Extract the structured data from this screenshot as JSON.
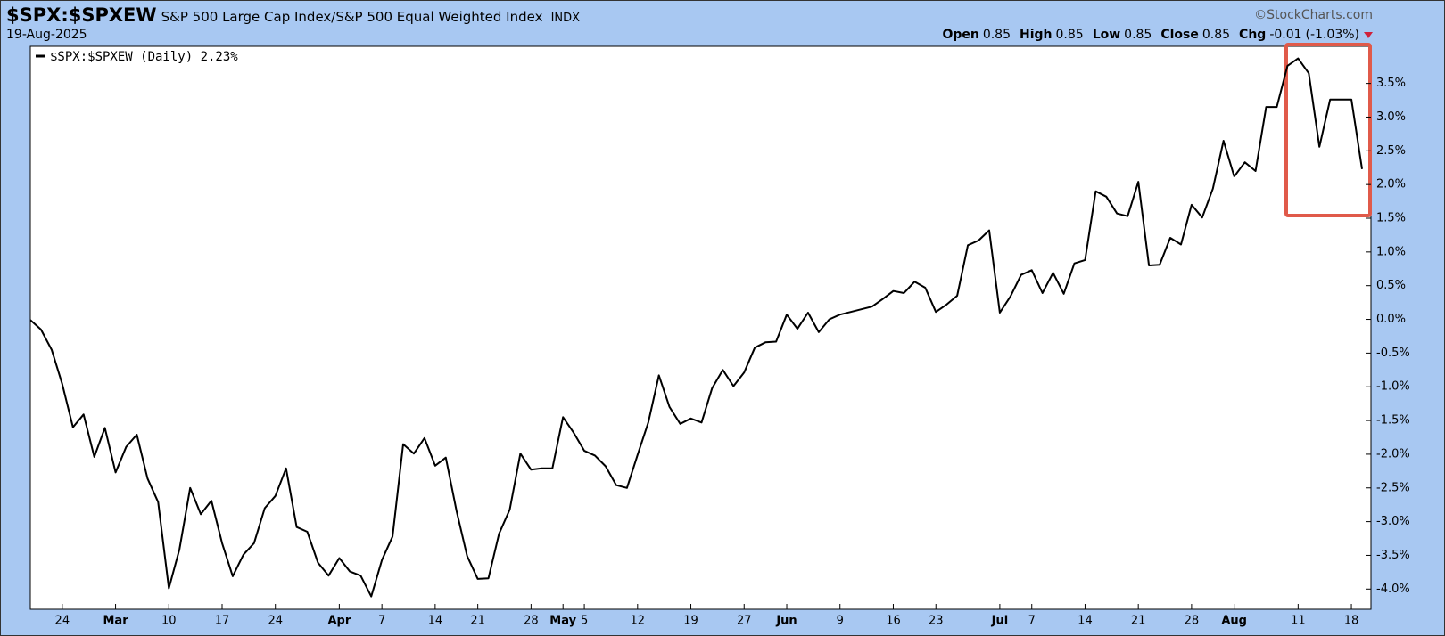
{
  "chart_data": {
    "type": "line",
    "symbol": "$SPX:$SPXEW",
    "title": "S&P 500 Large Cap Index/S&P 500 Equal Weighted Index",
    "exchange": "INDX",
    "source": "©StockCharts.com",
    "date": "19-Aug-2025",
    "quote": [
      {
        "label": "Open",
        "value": 0.85
      },
      {
        "label": "High",
        "value": 0.85
      },
      {
        "label": "Low",
        "value": 0.85
      },
      {
        "label": "Close",
        "value": 0.85
      },
      {
        "label": "Chg",
        "value": -0.01
      }
    ],
    "change_pct": "(-1.03%)",
    "categories": [
      null,
      null,
      null,
      "24",
      null,
      null,
      null,
      null,
      "Mar",
      null,
      null,
      null,
      null,
      "10",
      null,
      null,
      null,
      null,
      "17",
      null,
      null,
      null,
      null,
      "24",
      null,
      null,
      null,
      null,
      null,
      "Apr",
      null,
      null,
      null,
      "7",
      null,
      null,
      null,
      null,
      "14",
      null,
      null,
      null,
      "21",
      null,
      null,
      null,
      null,
      "28",
      null,
      null,
      "May",
      null,
      "5",
      null,
      null,
      null,
      null,
      "12",
      null,
      null,
      null,
      null,
      "19",
      null,
      null,
      null,
      null,
      "27",
      null,
      null,
      null,
      "Jun",
      null,
      null,
      null,
      null,
      "9",
      null,
      null,
      null,
      null,
      "16",
      null,
      null,
      null,
      "23",
      null,
      null,
      null,
      null,
      null,
      "Jul",
      null,
      null,
      "7",
      null,
      null,
      null,
      null,
      "14",
      null,
      null,
      null,
      null,
      "21",
      null,
      null,
      null,
      null,
      "28",
      null,
      null,
      null,
      "Aug",
      null,
      null,
      null,
      null,
      null,
      "11",
      null,
      null,
      null,
      null,
      "18",
      null
    ],
    "series": [
      {
        "name": "$SPX:$SPXEW (Daily) 2.23%",
        "color": "#000000",
        "values": [
          -0.01,
          -0.15,
          -0.45,
          -0.96,
          -1.6,
          -1.41,
          -2.04,
          -1.61,
          -2.27,
          -1.89,
          -1.71,
          -2.36,
          -2.71,
          -3.99,
          -3.41,
          -2.5,
          -2.89,
          -2.69,
          -3.32,
          -3.81,
          -3.49,
          -3.32,
          -2.8,
          -2.62,
          -2.21,
          -3.08,
          -3.15,
          -3.61,
          -3.8,
          -3.54,
          -3.74,
          -3.8,
          -4.11,
          -3.57,
          -3.22,
          -1.85,
          -1.99,
          -1.76,
          -2.17,
          -2.05,
          -2.84,
          -3.51,
          -3.85,
          -3.84,
          -3.18,
          -2.82,
          -1.99,
          -2.23,
          -2.21,
          -2.21,
          -1.45,
          -1.68,
          -1.95,
          -2.02,
          -2.18,
          -2.46,
          -2.5,
          -2.01,
          -1.53,
          -0.83,
          -1.3,
          -1.55,
          -1.47,
          -1.53,
          -1.02,
          -0.75,
          -0.99,
          -0.79,
          -0.42,
          -0.34,
          -0.33,
          0.07,
          -0.14,
          0.1,
          -0.19,
          0.0,
          0.07,
          0.11,
          0.15,
          0.19,
          0.3,
          0.42,
          0.39,
          0.56,
          0.47,
          0.11,
          0.22,
          0.35,
          1.1,
          1.17,
          1.32,
          0.1,
          0.34,
          0.66,
          0.73,
          0.39,
          0.69,
          0.38,
          0.83,
          0.88,
          1.9,
          1.82,
          1.57,
          1.53,
          2.04,
          0.8,
          0.81,
          1.21,
          1.11,
          1.7,
          1.51,
          1.94,
          2.65,
          2.12,
          2.33,
          2.2,
          3.15,
          3.15,
          3.76,
          3.87,
          3.65,
          2.56,
          3.26,
          3.26,
          3.26,
          2.23
        ]
      }
    ],
    "ylim": [
      -4.3,
      4.05
    ],
    "yticks": [
      {
        "value": -4.0,
        "label": "-4.0%"
      },
      {
        "value": -3.5,
        "label": "-3.5%"
      },
      {
        "value": -3.0,
        "label": "-3.0%"
      },
      {
        "value": -2.5,
        "label": "-2.5%"
      },
      {
        "value": -2.0,
        "label": "-2.0%"
      },
      {
        "value": -1.5,
        "label": "-1.5%"
      },
      {
        "value": -1.0,
        "label": "-1.0%"
      },
      {
        "value": -0.5,
        "label": "-0.5%"
      },
      {
        "value": 0.0,
        "label": "0.0%"
      },
      {
        "value": 0.5,
        "label": "0.5%"
      },
      {
        "value": 1.0,
        "label": "1.0%"
      },
      {
        "value": 1.5,
        "label": "1.5%"
      },
      {
        "value": 2.0,
        "label": "2.0%"
      },
      {
        "value": 2.5,
        "label": "2.5%"
      },
      {
        "value": 3.0,
        "label": "3.0%"
      },
      {
        "value": 3.5,
        "label": "3.5%"
      }
    ],
    "grid": false
  }
}
